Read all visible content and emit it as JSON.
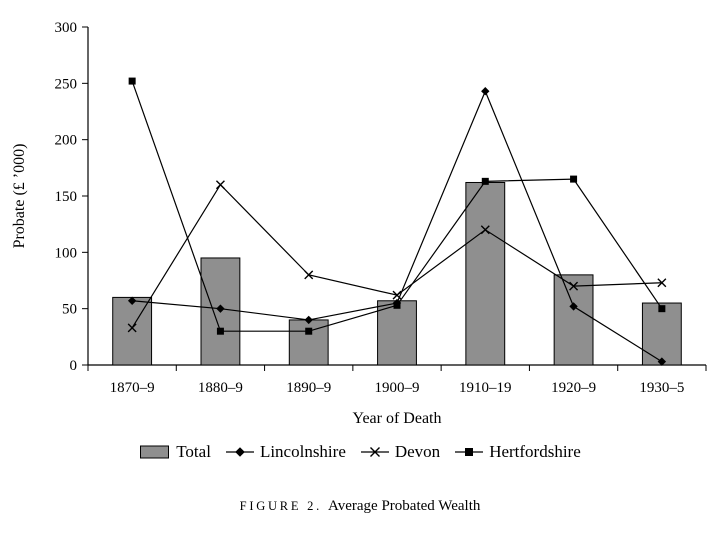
{
  "chart_data": {
    "type": "bar+line",
    "categories": [
      "1870–9",
      "1880–9",
      "1890–9",
      "1900–9",
      "1910–19",
      "1920–9",
      "1930–5"
    ],
    "bar_series": {
      "name": "Total",
      "values": [
        60,
        95,
        40,
        57,
        162,
        80,
        55
      ]
    },
    "line_series": [
      {
        "name": "Lincolnshire",
        "marker": "diamond",
        "values": [
          57,
          50,
          40,
          55,
          243,
          52,
          3
        ]
      },
      {
        "name": "Devon",
        "marker": "x",
        "values": [
          33,
          160,
          80,
          62,
          120,
          70,
          73
        ]
      },
      {
        "name": "Hertfordshire",
        "marker": "square",
        "values": [
          252,
          30,
          30,
          53,
          163,
          165,
          50
        ]
      }
    ],
    "title": "",
    "xlabel": "Year of Death",
    "ylabel": "Probate (£ ’000)",
    "ylim": [
      0,
      300
    ],
    "yticks": [
      0,
      50,
      100,
      150,
      200,
      250,
      300
    ],
    "grid": false,
    "legend_position": "bottom",
    "bar_color": "#8f8f8f",
    "line_color": "#000000",
    "axis_color": "#000000"
  },
  "caption": {
    "prefix": "Figure 2.",
    "title": "Average Probated Wealth"
  }
}
